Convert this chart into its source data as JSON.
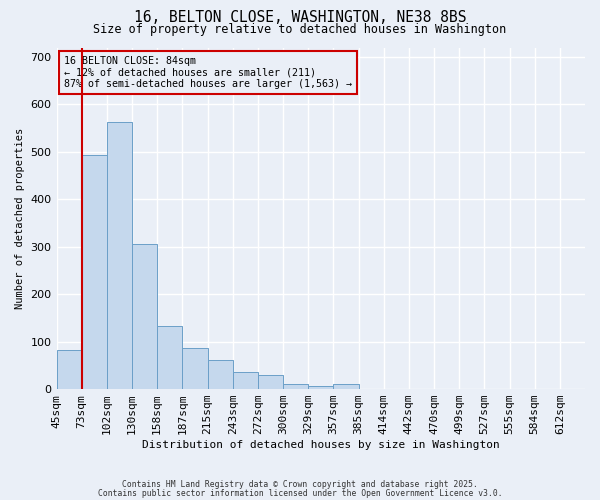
{
  "title_line1": "16, BELTON CLOSE, WASHINGTON, NE38 8BS",
  "title_line2": "Size of property relative to detached houses in Washington",
  "xlabel": "Distribution of detached houses by size in Washington",
  "ylabel": "Number of detached properties",
  "bar_color": "#c5d8ed",
  "bar_edge_color": "#6b9fc8",
  "bar_heights": [
    83,
    493,
    563,
    305,
    133,
    86,
    62,
    36,
    29,
    11,
    6,
    10,
    0,
    0,
    0,
    0,
    0,
    0,
    0,
    0,
    0
  ],
  "bin_labels": [
    "45sqm",
    "73sqm",
    "102sqm",
    "130sqm",
    "158sqm",
    "187sqm",
    "215sqm",
    "243sqm",
    "272sqm",
    "300sqm",
    "329sqm",
    "357sqm",
    "385sqm",
    "414sqm",
    "442sqm",
    "470sqm",
    "499sqm",
    "527sqm",
    "555sqm",
    "584sqm",
    "612sqm"
  ],
  "marker_bin": 1,
  "marker_line1": "16 BELTON CLOSE: 84sqm",
  "marker_line2": "← 12% of detached houses are smaller (211)",
  "marker_line3": "87% of semi-detached houses are larger (1,563) →",
  "marker_color": "#cc0000",
  "ylim": [
    0,
    720
  ],
  "yticks": [
    0,
    100,
    200,
    300,
    400,
    500,
    600,
    700
  ],
  "bg_color": "#eaeff7",
  "grid_color": "#ffffff",
  "footnote1": "Contains HM Land Registry data © Crown copyright and database right 2025.",
  "footnote2": "Contains public sector information licensed under the Open Government Licence v3.0."
}
